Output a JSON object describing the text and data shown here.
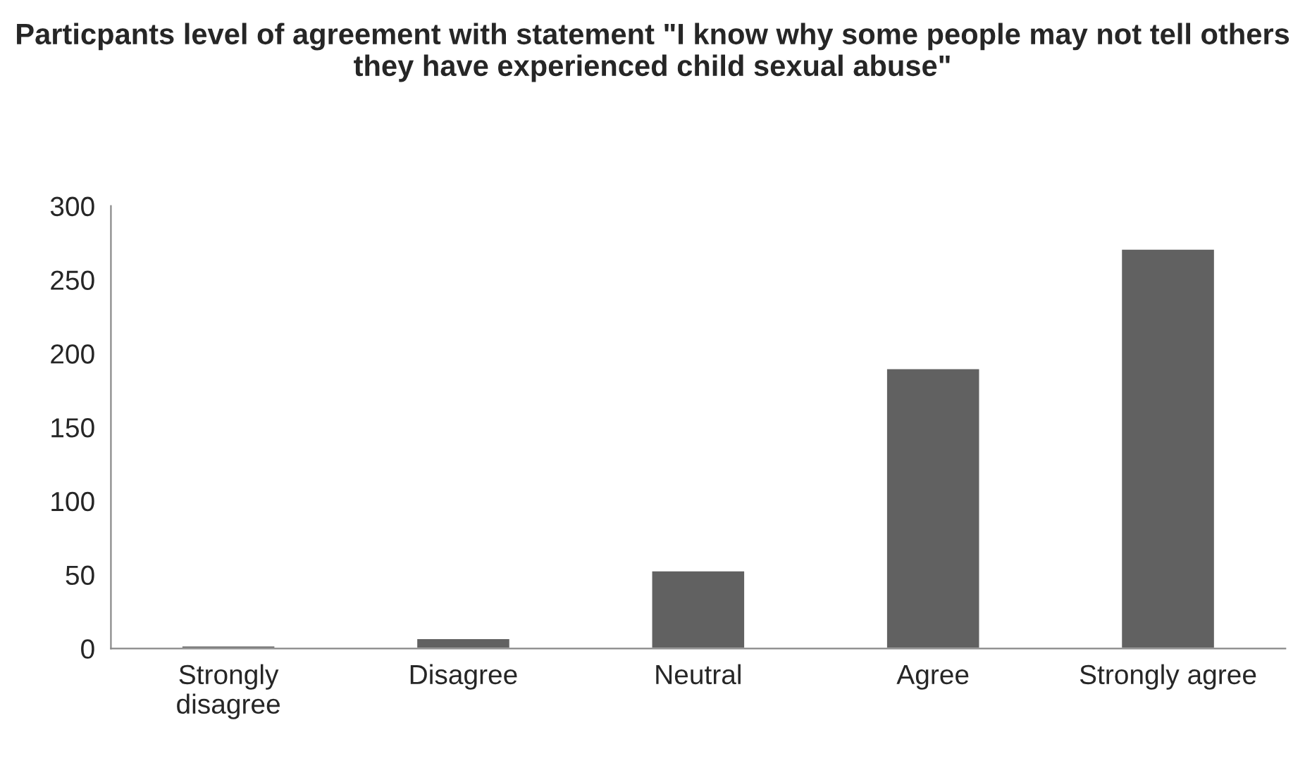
{
  "chart_data": {
    "type": "bar",
    "title": "Particpants level of agreement with statement \"I know why some people may not tell others they have experienced child sexual abuse\"",
    "categories": [
      "Strongly\ndisagree",
      "Disagree",
      "Neutral",
      "Agree",
      "Strongly agree"
    ],
    "values": [
      2,
      7,
      53,
      190,
      271
    ],
    "color": "#616161",
    "ylim": [
      0,
      300
    ],
    "yticks": [
      0,
      50,
      100,
      150,
      200,
      250,
      300
    ],
    "grid": false,
    "legend": false
  }
}
